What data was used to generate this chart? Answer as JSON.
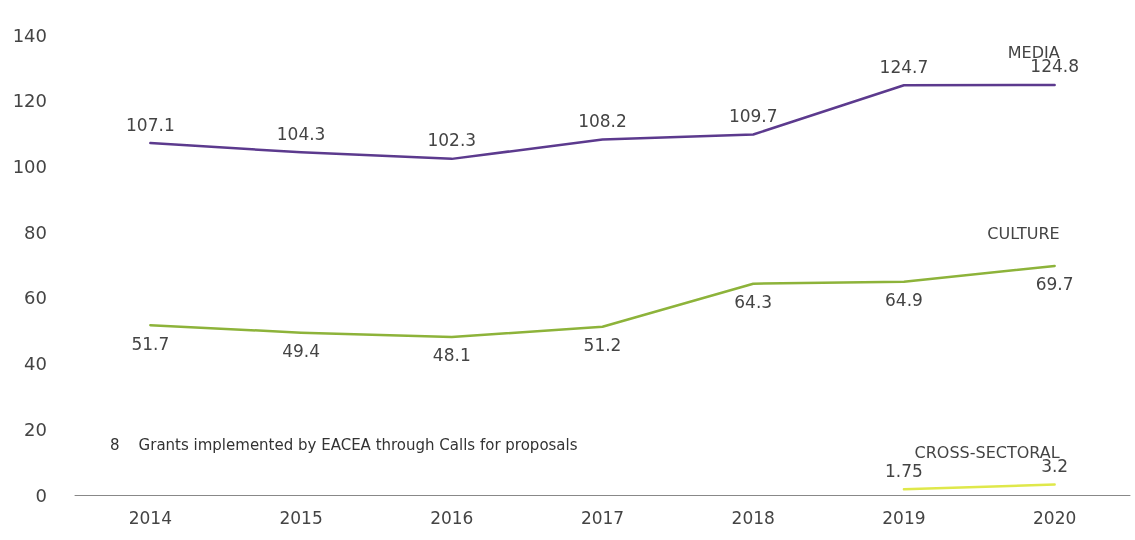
{
  "chart_data": {
    "type": "line",
    "categories": [
      "2014",
      "2015",
      "2016",
      "2017",
      "2018",
      "2019",
      "2020"
    ],
    "series": [
      {
        "name": "MEDIA",
        "color": "#5c3a8e",
        "values": [
          107.1,
          104.3,
          102.3,
          108.2,
          109.7,
          124.7,
          124.8
        ]
      },
      {
        "name": "CULTURE",
        "color": "#8db33a",
        "values": [
          51.7,
          49.4,
          48.1,
          51.2,
          64.3,
          64.9,
          69.7
        ]
      },
      {
        "name": "CROSS-SECTORAL",
        "color": "#dfe84a",
        "values": [
          null,
          null,
          null,
          null,
          null,
          1.75,
          3.2
        ]
      }
    ],
    "ylim": [
      0,
      140
    ],
    "yticks": [
      0,
      20,
      40,
      60,
      80,
      100,
      120,
      140
    ],
    "grid": false,
    "marker": "none",
    "line_style": "solid",
    "data_labels": true,
    "annotations": [
      "8    Grants implemented by EACEA through Calls for proposals"
    ]
  }
}
